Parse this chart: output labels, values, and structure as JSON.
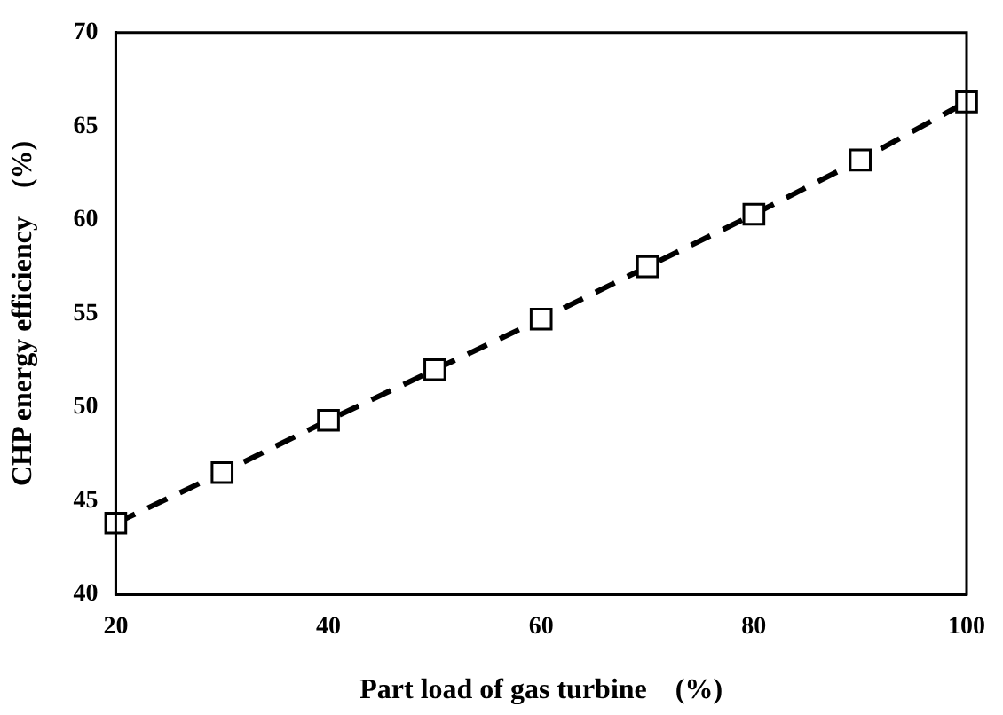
{
  "chart_data": {
    "type": "line",
    "xlabel": "Part load of gas turbine　(%)",
    "ylabel": "CHP energy efficiency　(%)",
    "x": [
      20,
      30,
      40,
      50,
      60,
      70,
      80,
      90,
      100
    ],
    "series": [
      {
        "color": "#000000",
        "values": [
          43.8,
          46.5,
          49.3,
          52.0,
          54.7,
          57.5,
          60.3,
          63.2,
          66.3
        ]
      }
    ],
    "xlim": [
      20,
      100
    ],
    "xticks": [
      20,
      40,
      60,
      80,
      100
    ],
    "ylim": [
      40,
      70
    ],
    "yticks": [
      40,
      45,
      50,
      55,
      60,
      65,
      70
    ],
    "grid": false,
    "legend": false,
    "marker": "square",
    "line_style": "dashed"
  }
}
